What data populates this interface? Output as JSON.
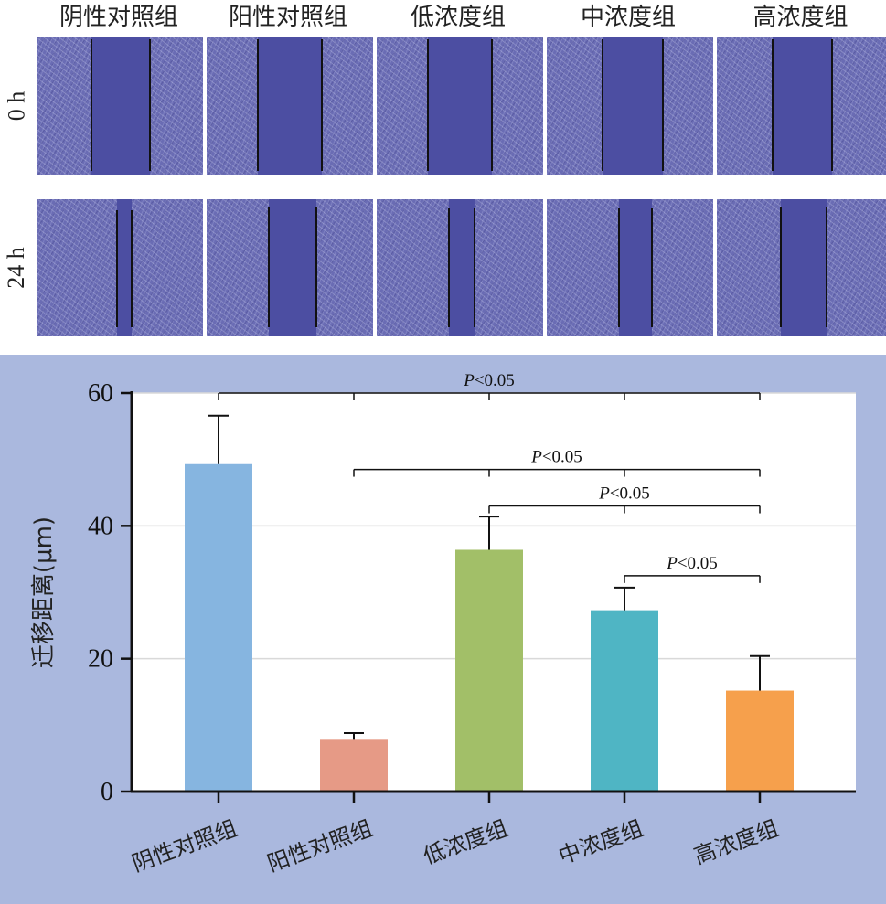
{
  "figure": {
    "groups": [
      "阴性对照组",
      "阳性对照组",
      "低浓度组",
      "中浓度组",
      "高浓度组"
    ],
    "time_rows": [
      "0 h",
      "24 h"
    ],
    "colors": {
      "panel_bg": "#aab8de",
      "cell_purple": "#6a6cb4",
      "gap_purple": "#4c4ea2"
    }
  },
  "chart_data": {
    "type": "bar",
    "categories": [
      "阴性对照组",
      "阳性对照组",
      "低浓度组",
      "中浓度组",
      "高浓度组"
    ],
    "values": [
      49.3,
      7.8,
      36.4,
      27.3,
      15.2
    ],
    "errors": [
      7.3,
      1.0,
      5.0,
      3.4,
      5.2
    ],
    "colors": [
      "#86b5e0",
      "#e69a86",
      "#a2bf68",
      "#4fb5c4",
      "#f6a04c"
    ],
    "ylabel": "迁移距离(μm)",
    "xlabel": "",
    "ylim": [
      0,
      60
    ],
    "yticks": [
      0,
      20,
      40,
      60
    ],
    "grid": true,
    "significance": [
      {
        "from": 0,
        "to": 4,
        "label": "P<0.05",
        "level": 60
      },
      {
        "from": 1,
        "to": 4,
        "label": "P<0.05",
        "level": 48.5
      },
      {
        "from": 2,
        "to": 4,
        "label": "P<0.05",
        "level": 43
      },
      {
        "from": 3,
        "to": 4,
        "label": "P<0.05",
        "level": 32.5
      }
    ]
  }
}
